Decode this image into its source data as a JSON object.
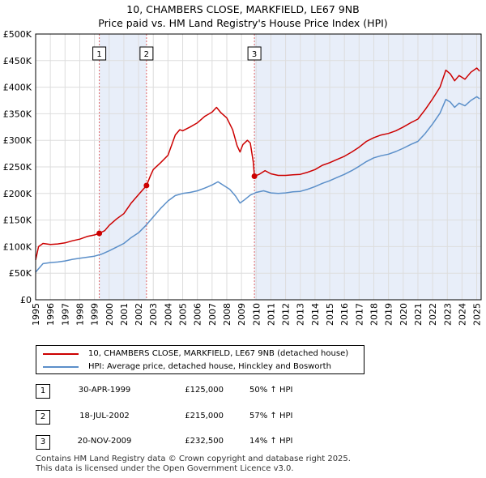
{
  "header": {
    "title": "10, CHAMBERS CLOSE, MARKFIELD, LE67 9NB",
    "subtitle": "Price paid vs. HM Land Registry's House Price Index (HPI)"
  },
  "chart_data": {
    "type": "line",
    "title": "10, CHAMBERS CLOSE, MARKFIELD, LE67 9NB",
    "subtitle": "Price paid vs. HM Land Registry's House Price Index (HPI)",
    "xlim": [
      1995,
      2025.3
    ],
    "ylim": [
      0,
      500000
    ],
    "y_ticks": [
      0,
      50000,
      100000,
      150000,
      200000,
      250000,
      300000,
      350000,
      400000,
      450000,
      500000
    ],
    "y_tick_labels": [
      "£0",
      "£50K",
      "£100K",
      "£150K",
      "£200K",
      "£250K",
      "£300K",
      "£350K",
      "£400K",
      "£450K",
      "£500K"
    ],
    "x_ticks": [
      1995,
      1996,
      1997,
      1998,
      1999,
      2000,
      2001,
      2002,
      2003,
      2004,
      2005,
      2006,
      2007,
      2008,
      2009,
      2010,
      2011,
      2012,
      2013,
      2014,
      2015,
      2016,
      2017,
      2018,
      2019,
      2020,
      2021,
      2022,
      2023,
      2024,
      2025
    ],
    "x_tick_labels": [
      "1995",
      "1996",
      "1997",
      "1998",
      "1999",
      "2000",
      "2001",
      "2002",
      "2003",
      "2004",
      "2005",
      "2006",
      "2007",
      "2008",
      "2009",
      "2010",
      "2011",
      "2012",
      "2013",
      "2014",
      "2015",
      "2016",
      "2017",
      "2018",
      "2019",
      "2020",
      "2021",
      "2022",
      "2023",
      "2024",
      "2025"
    ],
    "grid": true,
    "series": [
      {
        "name": "10, CHAMBERS CLOSE, MARKFIELD, LE67 9NB (detached house)",
        "color": "#cc0000",
        "points": [
          [
            1995.0,
            75000
          ],
          [
            1995.2,
            100000
          ],
          [
            1995.5,
            106000
          ],
          [
            1996.0,
            104000
          ],
          [
            1996.5,
            105000
          ],
          [
            1997.0,
            107000
          ],
          [
            1997.5,
            111000
          ],
          [
            1998.0,
            114000
          ],
          [
            1998.5,
            119000
          ],
          [
            1999.0,
            122000
          ],
          [
            1999.33,
            125000
          ],
          [
            1999.7,
            130000
          ],
          [
            2000.0,
            140000
          ],
          [
            2000.5,
            152000
          ],
          [
            2001.0,
            162000
          ],
          [
            2001.5,
            182000
          ],
          [
            2002.0,
            198000
          ],
          [
            2002.54,
            215000
          ],
          [
            2002.8,
            233000
          ],
          [
            2003.0,
            245000
          ],
          [
            2003.5,
            258000
          ],
          [
            2004.0,
            272000
          ],
          [
            2004.5,
            310000
          ],
          [
            2004.8,
            320000
          ],
          [
            2005.0,
            318000
          ],
          [
            2005.5,
            325000
          ],
          [
            2006.0,
            333000
          ],
          [
            2006.5,
            345000
          ],
          [
            2007.0,
            353000
          ],
          [
            2007.3,
            362000
          ],
          [
            2007.6,
            352000
          ],
          [
            2008.0,
            342000
          ],
          [
            2008.4,
            320000
          ],
          [
            2008.7,
            290000
          ],
          [
            2008.9,
            278000
          ],
          [
            2009.1,
            292000
          ],
          [
            2009.4,
            300000
          ],
          [
            2009.6,
            295000
          ],
          [
            2009.8,
            260000
          ],
          [
            2009.88,
            232500
          ],
          [
            2010.2,
            236000
          ],
          [
            2010.6,
            243000
          ],
          [
            2011.0,
            237000
          ],
          [
            2011.5,
            234000
          ],
          [
            2012.0,
            234000
          ],
          [
            2012.5,
            235000
          ],
          [
            2013.0,
            236000
          ],
          [
            2013.5,
            240000
          ],
          [
            2014.0,
            245000
          ],
          [
            2014.5,
            253000
          ],
          [
            2015.0,
            258000
          ],
          [
            2015.5,
            264000
          ],
          [
            2016.0,
            270000
          ],
          [
            2016.5,
            278000
          ],
          [
            2017.0,
            287000
          ],
          [
            2017.5,
            298000
          ],
          [
            2018.0,
            305000
          ],
          [
            2018.5,
            310000
          ],
          [
            2019.0,
            313000
          ],
          [
            2019.5,
            318000
          ],
          [
            2020.0,
            325000
          ],
          [
            2020.5,
            333000
          ],
          [
            2021.0,
            340000
          ],
          [
            2021.5,
            358000
          ],
          [
            2022.0,
            378000
          ],
          [
            2022.5,
            400000
          ],
          [
            2022.9,
            432000
          ],
          [
            2023.2,
            425000
          ],
          [
            2023.5,
            412000
          ],
          [
            2023.8,
            422000
          ],
          [
            2024.2,
            415000
          ],
          [
            2024.6,
            428000
          ],
          [
            2025.0,
            436000
          ],
          [
            2025.2,
            430000
          ]
        ]
      },
      {
        "name": "HPI: Average price, detached house, Hinckley and Bosworth",
        "color": "#5b8fc9",
        "points": [
          [
            1995.0,
            52000
          ],
          [
            1995.5,
            68000
          ],
          [
            1996.0,
            70000
          ],
          [
            1996.5,
            71000
          ],
          [
            1997.0,
            73000
          ],
          [
            1997.5,
            76000
          ],
          [
            1998.0,
            78000
          ],
          [
            1998.5,
            80000
          ],
          [
            1999.0,
            82000
          ],
          [
            1999.5,
            86000
          ],
          [
            2000.0,
            92000
          ],
          [
            2000.5,
            99000
          ],
          [
            2001.0,
            106000
          ],
          [
            2001.5,
            117000
          ],
          [
            2002.0,
            126000
          ],
          [
            2002.5,
            140000
          ],
          [
            2003.0,
            156000
          ],
          [
            2003.5,
            172000
          ],
          [
            2004.0,
            186000
          ],
          [
            2004.5,
            196000
          ],
          [
            2005.0,
            200000
          ],
          [
            2005.5,
            202000
          ],
          [
            2006.0,
            205000
          ],
          [
            2006.5,
            210000
          ],
          [
            2007.0,
            216000
          ],
          [
            2007.4,
            222000
          ],
          [
            2007.8,
            215000
          ],
          [
            2008.2,
            208000
          ],
          [
            2008.6,
            195000
          ],
          [
            2008.9,
            182000
          ],
          [
            2009.2,
            188000
          ],
          [
            2009.6,
            197000
          ],
          [
            2010.0,
            202000
          ],
          [
            2010.5,
            205000
          ],
          [
            2011.0,
            201000
          ],
          [
            2011.5,
            200000
          ],
          [
            2012.0,
            201000
          ],
          [
            2012.5,
            203000
          ],
          [
            2013.0,
            204000
          ],
          [
            2013.5,
            208000
          ],
          [
            2014.0,
            213000
          ],
          [
            2014.5,
            219000
          ],
          [
            2015.0,
            224000
          ],
          [
            2015.5,
            230000
          ],
          [
            2016.0,
            236000
          ],
          [
            2016.5,
            243000
          ],
          [
            2017.0,
            251000
          ],
          [
            2017.5,
            260000
          ],
          [
            2018.0,
            267000
          ],
          [
            2018.5,
            271000
          ],
          [
            2019.0,
            274000
          ],
          [
            2019.5,
            279000
          ],
          [
            2020.0,
            285000
          ],
          [
            2020.5,
            292000
          ],
          [
            2021.0,
            298000
          ],
          [
            2021.5,
            313000
          ],
          [
            2022.0,
            331000
          ],
          [
            2022.5,
            351000
          ],
          [
            2022.9,
            377000
          ],
          [
            2023.2,
            372000
          ],
          [
            2023.5,
            362000
          ],
          [
            2023.8,
            370000
          ],
          [
            2024.2,
            365000
          ],
          [
            2024.6,
            375000
          ],
          [
            2025.0,
            382000
          ],
          [
            2025.2,
            378000
          ]
        ]
      }
    ],
    "sales": [
      {
        "label": "1",
        "date": "30-APR-1999",
        "x": 1999.33,
        "price": 125000,
        "price_label": "£125,000",
        "hpi": "50% ↑ HPI"
      },
      {
        "label": "2",
        "date": "18-JUL-2002",
        "x": 2002.54,
        "price": 215000,
        "price_label": "£215,000",
        "hpi": "57% ↑ HPI"
      },
      {
        "label": "3",
        "date": "20-NOV-2009",
        "x": 2009.88,
        "price": 232500,
        "price_label": "£232,500",
        "hpi": "14% ↑ HPI"
      }
    ],
    "shaded_ranges": [
      [
        1999.33,
        2002.54
      ],
      [
        2009.88,
        2025.3
      ]
    ]
  },
  "colors": {
    "price_line": "#cc0000",
    "hpi_line": "#5b8fc9",
    "shade": "#e8eef9",
    "grid": "#dddddd",
    "vline": "#e06666"
  },
  "legend": {
    "items": [
      {
        "label": "10, CHAMBERS CLOSE, MARKFIELD, LE67 9NB (detached house)"
      },
      {
        "label": "HPI: Average price, detached house, Hinckley and Bosworth"
      }
    ]
  },
  "sales_table": [
    {
      "num": "1",
      "date": "30-APR-1999",
      "price": "£125,000",
      "hpi": "50% ↑ HPI"
    },
    {
      "num": "2",
      "date": "18-JUL-2002",
      "price": "£215,000",
      "hpi": "57% ↑ HPI"
    },
    {
      "num": "3",
      "date": "20-NOV-2009",
      "price": "£232,500",
      "hpi": "14% ↑ HPI"
    }
  ],
  "footer": {
    "line1": "Contains HM Land Registry data © Crown copyright and database right 2025.",
    "line2": "This data is licensed under the Open Government Licence v3.0."
  }
}
